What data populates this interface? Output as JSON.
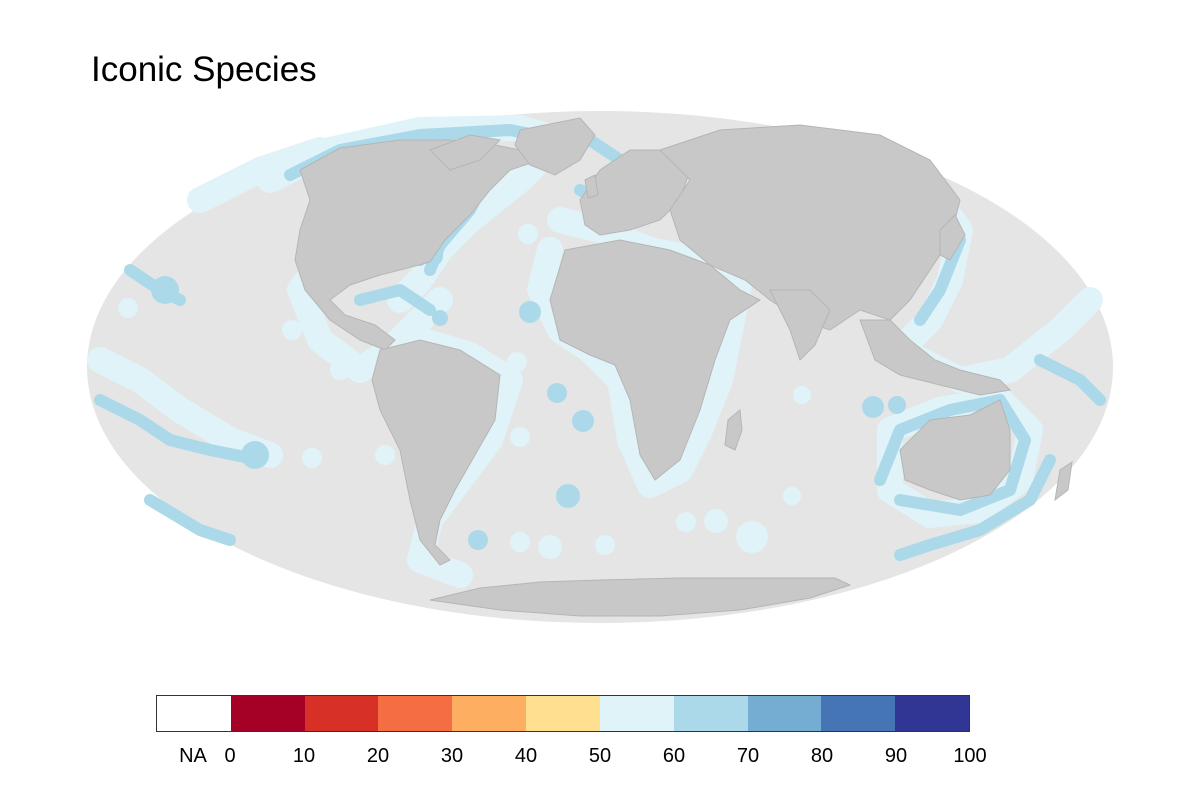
{
  "title": "Iconic Species",
  "legend": {
    "na_label": "NA",
    "na_color": "#ffffff",
    "bins": [
      {
        "color": "#a50026"
      },
      {
        "color": "#d73027"
      },
      {
        "color": "#f46d43"
      },
      {
        "color": "#fdae61"
      },
      {
        "color": "#fee090"
      },
      {
        "color": "#e0f3f8"
      },
      {
        "color": "#abd9e9"
      },
      {
        "color": "#74add1"
      },
      {
        "color": "#4575b4"
      },
      {
        "color": "#313695"
      }
    ],
    "ticks": [
      "0",
      "10",
      "20",
      "30",
      "40",
      "50",
      "60",
      "70",
      "80",
      "90",
      "100"
    ]
  },
  "colors": {
    "ocean": "#e5e5e5",
    "land": "#c8c8c8",
    "coast_light": "#e0f3f8",
    "coast_mid": "#abd9e9"
  }
}
